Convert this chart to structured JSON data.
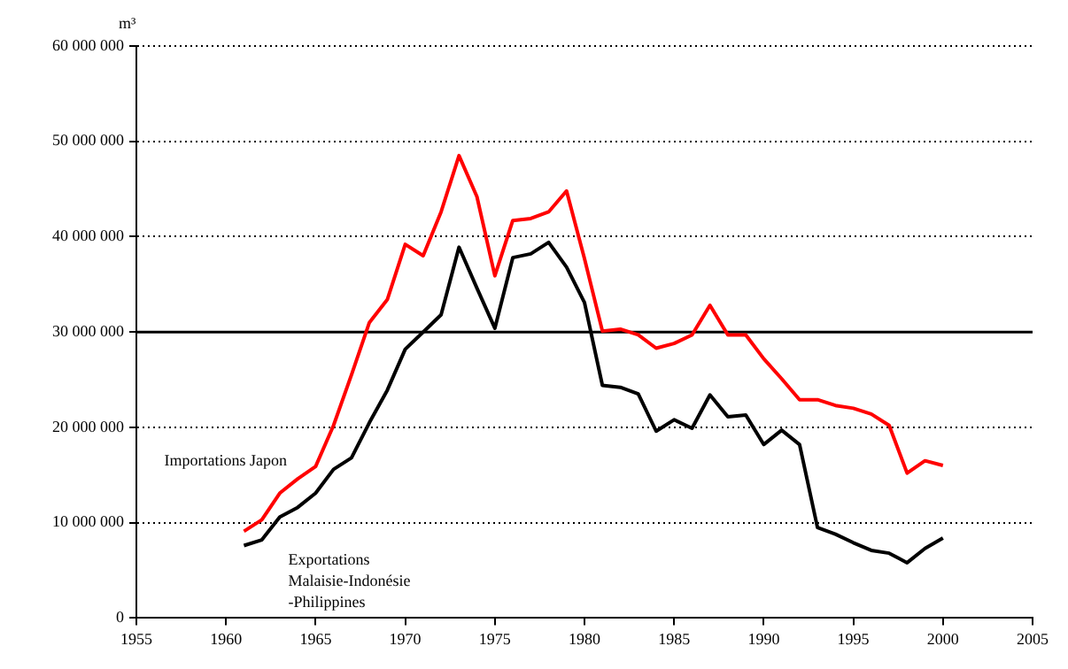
{
  "chart_data": {
    "type": "line",
    "ylabel": "m³",
    "x": [
      1961,
      1962,
      1963,
      1964,
      1965,
      1966,
      1967,
      1968,
      1969,
      1970,
      1971,
      1972,
      1973,
      1974,
      1975,
      1976,
      1977,
      1978,
      1979,
      1980,
      1981,
      1982,
      1983,
      1984,
      1985,
      1986,
      1987,
      1988,
      1989,
      1990,
      1991,
      1992,
      1993,
      1994,
      1995,
      1996,
      1997,
      1998,
      1999,
      2000
    ],
    "series": [
      {
        "name": "Importations Japon",
        "color": "#ff0000",
        "values": [
          9100000,
          10300000,
          13100000,
          14600000,
          15900000,
          20200000,
          25500000,
          31000000,
          33400000,
          39200000,
          38000000,
          42600000,
          48500000,
          44200000,
          35900000,
          41700000,
          41900000,
          42600000,
          44800000,
          37700000,
          30100000,
          30300000,
          29700000,
          28300000,
          28800000,
          29700000,
          32800000,
          29700000,
          29700000,
          27200000,
          25100000,
          22900000,
          22900000,
          22300000,
          22000000,
          21400000,
          20200000,
          15200000,
          16500000,
          16000000
        ]
      },
      {
        "name": "Exportations Malaisie-Indonésie -Philippines",
        "color": "#000000",
        "values": [
          7600000,
          8200000,
          10600000,
          11600000,
          13100000,
          15600000,
          16800000,
          20500000,
          23900000,
          28200000,
          30000000,
          31800000,
          38900000,
          34600000,
          30400000,
          37800000,
          38200000,
          39400000,
          36800000,
          33100000,
          24400000,
          24200000,
          23500000,
          19600000,
          20800000,
          19900000,
          23400000,
          21100000,
          21300000,
          18200000,
          19700000,
          18200000,
          9500000,
          8800000,
          7900000,
          7100000,
          6800000,
          5800000,
          7300000,
          8400000
        ]
      }
    ],
    "xlim": [
      1955,
      2005
    ],
    "xticks": [
      1955,
      1960,
      1965,
      1970,
      1975,
      1980,
      1985,
      1990,
      1995,
      2000,
      2005
    ],
    "ylim": [
      0,
      60000000
    ],
    "yticks": [
      0,
      {
        "value": 10000000,
        "label": "10 000 000"
      },
      {
        "value": 20000000,
        "label": "20 000 000"
      },
      {
        "value": 30000000,
        "label": "30 000 000"
      },
      {
        "value": 40000000,
        "label": "40 000 000"
      },
      {
        "value": 50000000,
        "label": "50 000 000"
      },
      {
        "value": 60000000,
        "label": "60 000 000"
      }
    ],
    "grid": "y",
    "legend": false,
    "marker": "none",
    "line_style": "solid",
    "ref_lines": [
      {
        "axis": "y",
        "value": 30000000,
        "color": "#000000"
      }
    ]
  }
}
